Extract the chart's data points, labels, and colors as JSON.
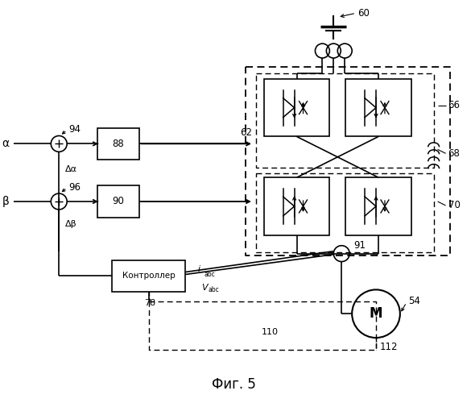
{
  "title": "Фиг. 5",
  "bg_color": "#ffffff",
  "label_60": "60",
  "label_94": "94",
  "label_88": "88",
  "label_62": "62",
  "label_66": "66",
  "label_68": "68",
  "label_70": "70",
  "label_96": "96",
  "label_90": "90",
  "label_91": "91",
  "label_78": "78",
  "label_54": "54",
  "label_110": "110",
  "label_112": "112",
  "text_alpha": "α",
  "text_beta": "β",
  "text_delta_alpha": "Δα",
  "text_delta_beta": "Δβ",
  "text_controller": "Контроллер",
  "text_iabc": "i",
  "text_iabc_sub": "abc",
  "text_vabc": "V",
  "text_vabc_sub": "abc",
  "text_M": "M"
}
